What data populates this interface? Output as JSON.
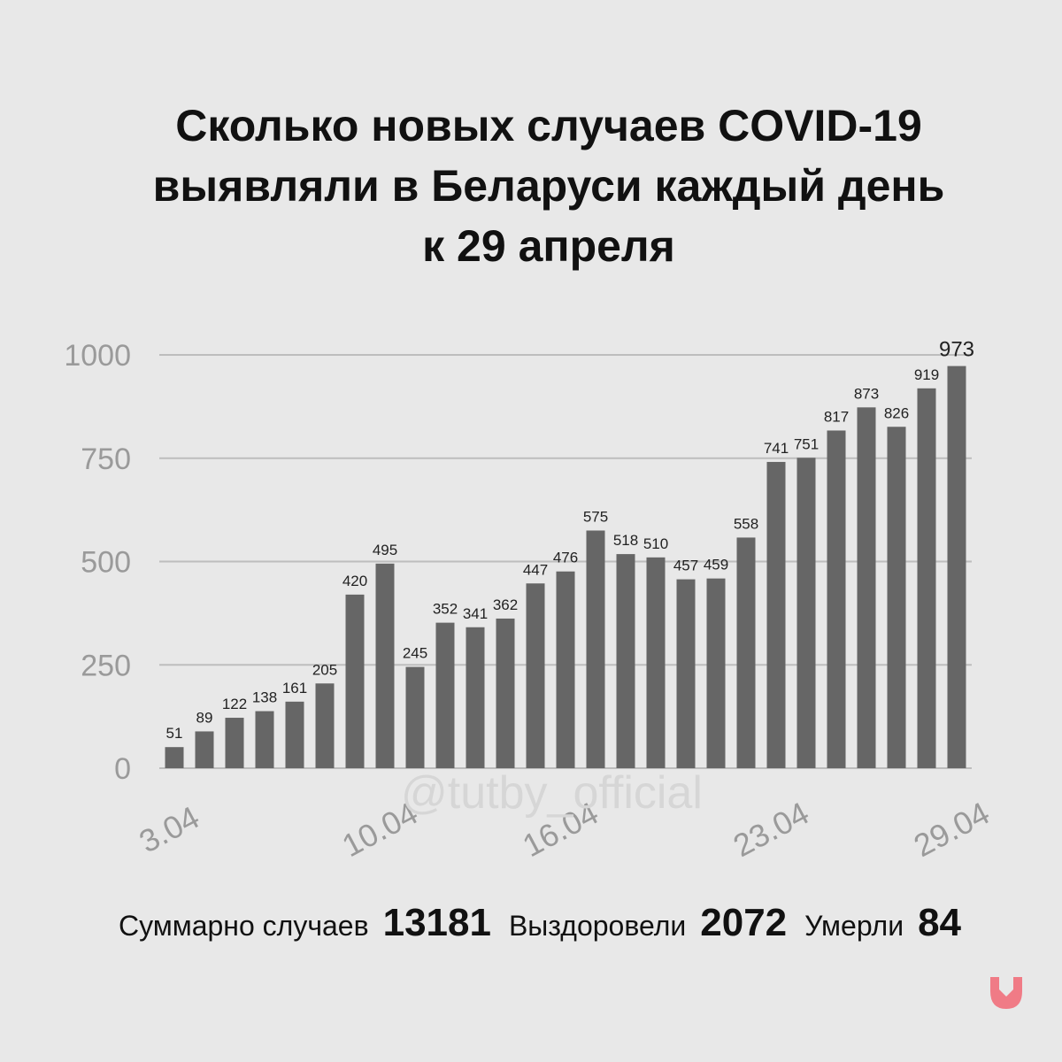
{
  "title_lines": [
    "Сколько новых случаев COVID-19",
    "выявляли в Беларуси каждый день",
    "к 29 апреля"
  ],
  "watermark": "@tutby_official",
  "stats": {
    "total_label": "Суммарно случаев",
    "total_value": "13181",
    "recovered_label": "Выздоровели",
    "recovered_value": "2072",
    "died_label": "Умерли",
    "died_value": "84"
  },
  "colors": {
    "background": "#e8e8e8",
    "bar": "#666666",
    "grid": "#bdbdbd",
    "axis_text": "#9a9a9a",
    "logo": "#f07b86"
  },
  "logo_icon": "tutby-down-arrow-logo",
  "chart_data": {
    "type": "bar",
    "categories": [
      "3.04",
      "4.04",
      "5.04",
      "6.04",
      "7.04",
      "8.04",
      "9.04",
      "10.04",
      "11.04",
      "12.04",
      "13.04",
      "14.04",
      "15.04",
      "16.04",
      "17.04",
      "18.04",
      "19.04",
      "20.04",
      "21.04",
      "22.04",
      "23.04",
      "24.04",
      "25.04",
      "26.04",
      "27.04",
      "28.04",
      "29.04"
    ],
    "x_tick_labels": [
      "3.04",
      "10.04",
      "16.04",
      "23.04",
      "29.04"
    ],
    "values": [
      51,
      89,
      122,
      138,
      161,
      205,
      420,
      495,
      245,
      352,
      341,
      362,
      447,
      476,
      575,
      518,
      510,
      457,
      459,
      558,
      741,
      751,
      817,
      873,
      826,
      919,
      973
    ],
    "y_ticks": [
      0,
      250,
      500,
      750,
      1000
    ],
    "ylim": [
      0,
      1000
    ],
    "grid": true
  }
}
